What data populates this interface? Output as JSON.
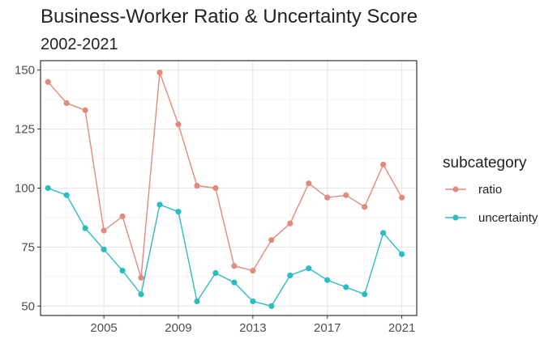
{
  "chart_data": {
    "type": "line",
    "title": "Business-Worker Ratio & Uncertainty Score",
    "subtitle": "2002-2021",
    "xlabel": "",
    "ylabel": "",
    "xlim": [
      2001.6,
      2021.8
    ],
    "ylim": [
      46,
      154
    ],
    "x_ticks": [
      2005,
      2009,
      2013,
      2017,
      2021
    ],
    "y_ticks": [
      50,
      75,
      100,
      125,
      150
    ],
    "grid": true,
    "legend_position": "right",
    "legend_title": "subcategory",
    "x": [
      2002,
      2003,
      2004,
      2005,
      2006,
      2007,
      2008,
      2009,
      2010,
      2011,
      2012,
      2013,
      2014,
      2015,
      2016,
      2017,
      2018,
      2019,
      2020,
      2021
    ],
    "series": [
      {
        "name": "ratio",
        "color": "#e08b7d",
        "values": [
          145,
          136,
          133,
          82,
          88,
          62,
          149,
          127,
          101,
          100,
          67,
          65,
          78,
          85,
          102,
          96,
          97,
          92,
          110,
          96
        ]
      },
      {
        "name": "uncertainty",
        "color": "#2bbcc1",
        "values": [
          100,
          97,
          83,
          74,
          65,
          55,
          93,
          90,
          52,
          64,
          60,
          52,
          50,
          63,
          66,
          61,
          58,
          55,
          81,
          72
        ]
      }
    ]
  }
}
